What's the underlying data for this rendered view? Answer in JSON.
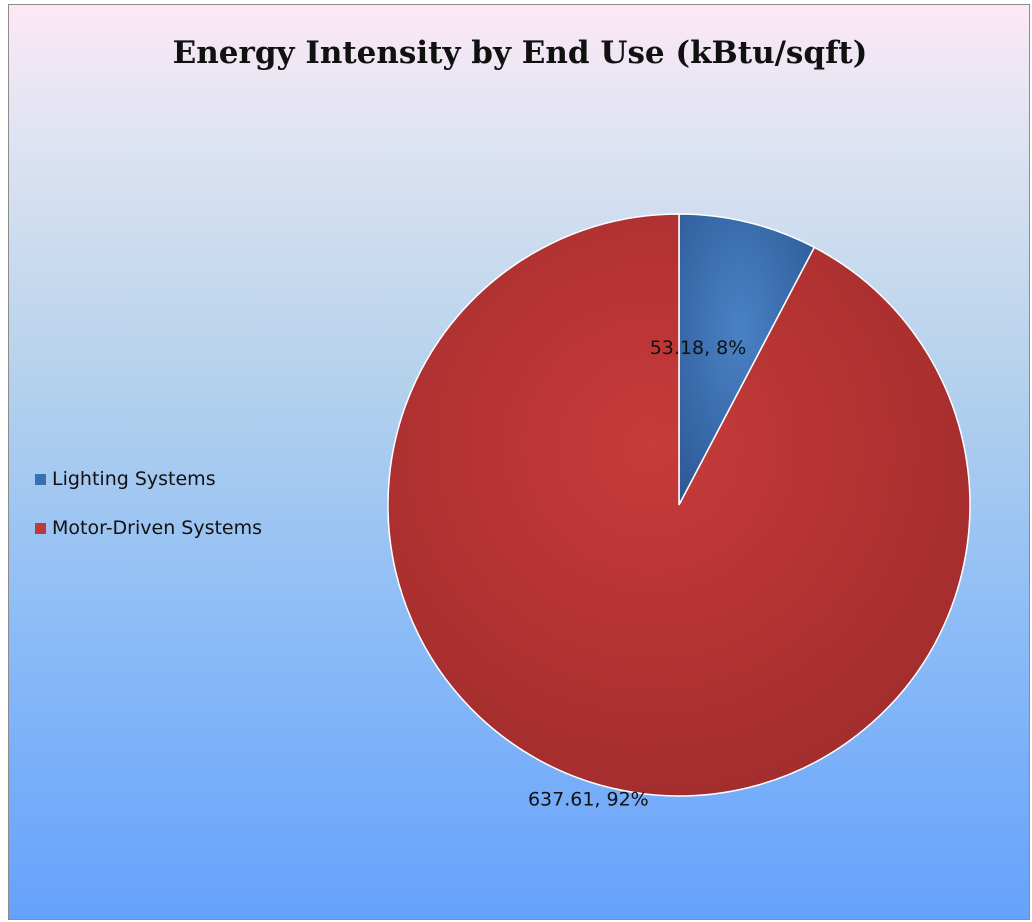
{
  "chart_data": {
    "type": "pie",
    "title": "Energy Intensity by End Use (kBtu/sqft)",
    "legend_position": "left",
    "slices": [
      {
        "label": "Lighting Systems",
        "value": 53.18,
        "percent": 8,
        "data_label": "53.18, 8%",
        "color": "#3a6fb3"
      },
      {
        "label": "Motor-Driven Systems",
        "value": 637.61,
        "percent": 92,
        "data_label": "637.61, 92%",
        "color": "#c0393a"
      }
    ]
  }
}
